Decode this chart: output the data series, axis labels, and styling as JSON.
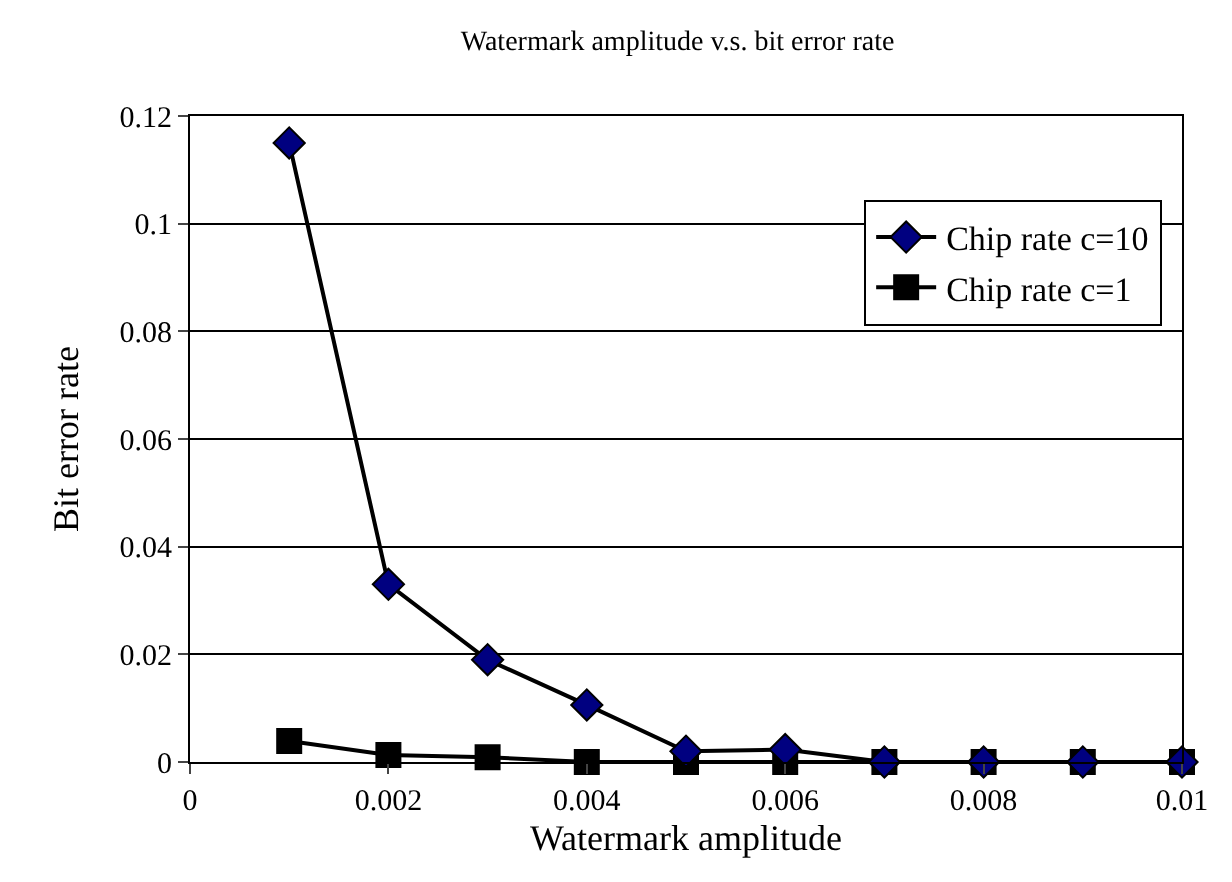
{
  "chart_data": {
    "type": "line",
    "title": "Watermark amplitude v.s. bit error rate",
    "xlabel": "Watermark amplitude",
    "ylabel": "Bit error rate",
    "x": [
      0.001,
      0.002,
      0.003,
      0.004,
      0.005,
      0.006,
      0.007,
      0.008,
      0.009,
      0.01
    ],
    "series": [
      {
        "name": "Chip rate c=10",
        "color": "#000080",
        "marker": "diamond",
        "values": [
          0.115,
          0.033,
          0.019,
          0.0106,
          0.002,
          0.0023,
          0,
          0,
          0,
          0
        ]
      },
      {
        "name": "Chip rate c=1",
        "color": "#000000",
        "marker": "square",
        "values": [
          0.0039,
          0.0013,
          0.0009,
          0,
          0,
          0,
          0,
          0,
          0,
          0
        ]
      }
    ],
    "xlim": [
      0,
      0.01
    ],
    "xticks": [
      0,
      0.002,
      0.004,
      0.006,
      0.008,
      0.01
    ],
    "ylim": [
      0,
      0.12
    ],
    "yticks": [
      0,
      0.02,
      0.04,
      0.06,
      0.08,
      0.1,
      0.12
    ],
    "grid": "y",
    "legend": "top right",
    "line_style": "solid"
  }
}
